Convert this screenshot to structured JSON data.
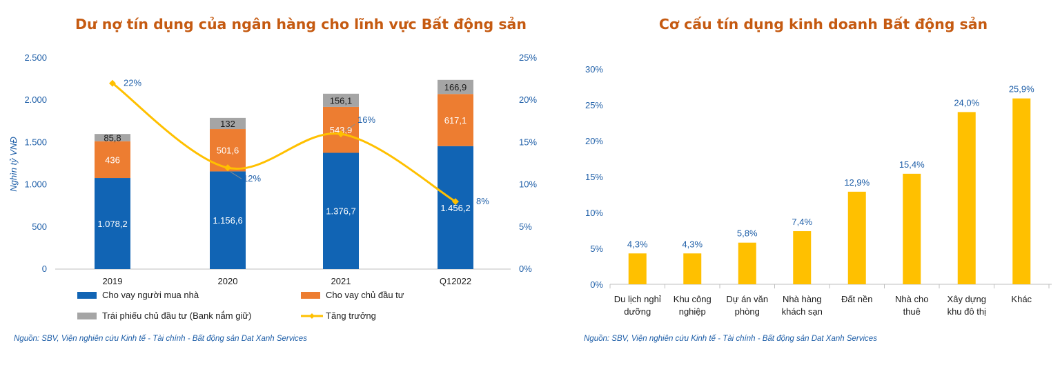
{
  "colors": {
    "title": "#c55a11",
    "blue": "#1164b4",
    "orange": "#ed7d31",
    "gray": "#a5a5a5",
    "yellow": "#ffc000",
    "axisText": "#1f5fa8"
  },
  "chart_data": [
    {
      "type": "bar",
      "title": "Dư nợ tín dụng của ngân hàng cho lĩnh vực Bất động sản",
      "ylabel": "Nghìn tỷ VNĐ",
      "categories": [
        "2019",
        "2020",
        "2021",
        "Q12022"
      ],
      "ylim": [
        0,
        2500
      ],
      "yticks": [
        0,
        500,
        1000,
        1500,
        2000,
        2500
      ],
      "ytick_labels": [
        "0",
        "500",
        "1.000",
        "1.500",
        "2.000",
        "2.500"
      ],
      "y2lim": [
        0,
        25
      ],
      "y2ticks": [
        0,
        5,
        10,
        15,
        20,
        25
      ],
      "y2tick_labels": [
        "0%",
        "5%",
        "10%",
        "15%",
        "20%",
        "25%"
      ],
      "series": [
        {
          "name": "Cho vay người mua nhà",
          "stack": true,
          "values": [
            1078.2,
            1156.6,
            1376.7,
            1456.2
          ],
          "labels": [
            "1.078,2",
            "1.156,6",
            "1.376,7",
            "1.456,2"
          ]
        },
        {
          "name": "Cho vay chủ đầu tư",
          "stack": true,
          "values": [
            436,
            501.6,
            543.9,
            617.1
          ],
          "labels": [
            "436",
            "501,6",
            "543,9",
            "617,1"
          ]
        },
        {
          "name": "Trái phiếu chủ đầu tư (Bank nắm giữ)",
          "stack": true,
          "values": [
            85.8,
            132,
            156.1,
            166.9
          ],
          "labels": [
            "85,8",
            "132",
            "156,1",
            "166,9"
          ]
        },
        {
          "name": "Tăng trưởng",
          "type": "line",
          "axis": "y2",
          "values": [
            22,
            12,
            16,
            8
          ],
          "labels": [
            "22%",
            "12%",
            "16%",
            "8%"
          ]
        }
      ],
      "legend_position": "bottom",
      "source": "Nguồn: SBV, Viện nghiên cứu Kinh tế - Tài chính - Bất động sản Dat Xanh Services"
    },
    {
      "type": "bar",
      "title": "Cơ cấu tín dụng kinh doanh Bất động sản",
      "categories": [
        [
          "Du lịch nghỉ",
          "dưỡng"
        ],
        [
          "Khu công",
          "nghiệp"
        ],
        [
          "Dự án văn",
          "phòng"
        ],
        [
          "Nhà hàng",
          "khách sạn"
        ],
        [
          "Đất nền"
        ],
        [
          "Nhà cho",
          "thuê"
        ],
        [
          "Xây dựng",
          "khu đô thị"
        ],
        [
          "Khác"
        ]
      ],
      "values": [
        4.3,
        4.3,
        5.8,
        7.4,
        12.9,
        15.4,
        24.0,
        25.9
      ],
      "value_labels": [
        "4,3%",
        "4,3%",
        "5,8%",
        "7,4%",
        "12,9%",
        "15,4%",
        "24,0%",
        "25,9%"
      ],
      "ylim": [
        0,
        30
      ],
      "yticks": [
        0,
        5,
        10,
        15,
        20,
        25,
        30
      ],
      "ytick_labels": [
        "0%",
        "5%",
        "10%",
        "15%",
        "20%",
        "25%",
        "30%"
      ],
      "source": "Nguồn: SBV, Viện nghiên cứu Kinh tế - Tài chính - Bất động sản Dat Xanh Services"
    }
  ]
}
